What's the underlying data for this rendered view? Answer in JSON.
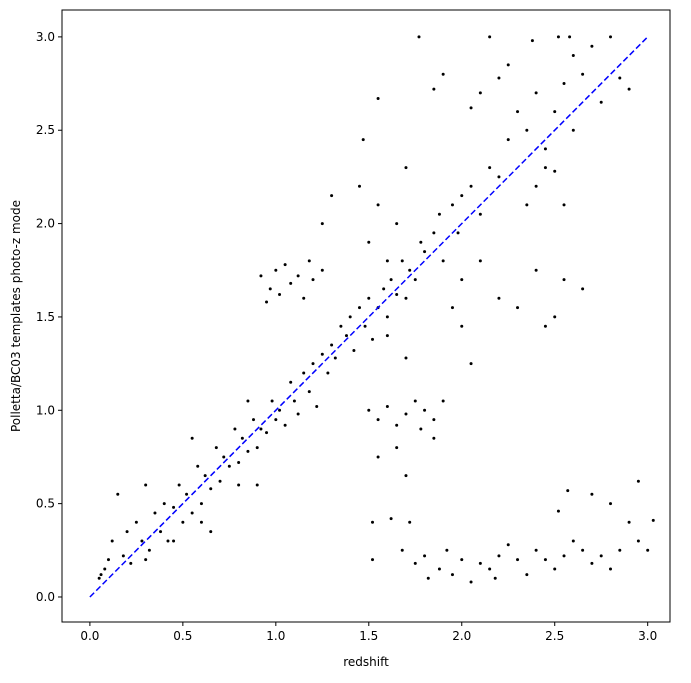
{
  "chart_data": {
    "type": "scatter",
    "xlabel": "redshift",
    "ylabel": "Polletta/BC03 templates photo-z mode",
    "xlim": [
      -0.15,
      3.12
    ],
    "ylim": [
      -0.134,
      3.144
    ],
    "xticks": [
      {
        "value": 0,
        "label": "0.0"
      },
      {
        "value": 0.5,
        "label": "0.5"
      },
      {
        "value": 1,
        "label": "1.0"
      },
      {
        "value": 1.5,
        "label": "1.5"
      },
      {
        "value": 2,
        "label": "2.0"
      },
      {
        "value": 2.5,
        "label": "2.5"
      },
      {
        "value": 3,
        "label": "3.0"
      }
    ],
    "yticks": [
      {
        "value": 0,
        "label": "0.0"
      },
      {
        "value": 0.5,
        "label": "0.5"
      },
      {
        "value": 1,
        "label": "1.0"
      },
      {
        "value": 1.5,
        "label": "1.5"
      },
      {
        "value": 2,
        "label": "2.0"
      },
      {
        "value": 2.5,
        "label": "2.5"
      },
      {
        "value": 3,
        "label": "3.0"
      }
    ],
    "series": [
      {
        "color": "#000000",
        "x": [
          0.05,
          0.08,
          0.1,
          0.12,
          0.15,
          0.18,
          0.2,
          0.22,
          0.25,
          0.28,
          0.3,
          0.32,
          0.35,
          0.38,
          0.4,
          0.42,
          0.45,
          0.48,
          0.5,
          0.52,
          0.55,
          0.58,
          0.6,
          0.62,
          0.65,
          0.68,
          0.7,
          0.72,
          0.75,
          0.78,
          0.8,
          0.82,
          0.85,
          0.88,
          0.9,
          0.92,
          0.95,
          0.98,
          1.0,
          1.02,
          1.05,
          1.08,
          1.1,
          1.12,
          1.15,
          1.18,
          1.2,
          1.22,
          1.25,
          1.28,
          1.3,
          1.32,
          1.35,
          1.38,
          1.4,
          1.42,
          1.45,
          1.48,
          1.5,
          1.52,
          1.55,
          1.58,
          1.6,
          1.62,
          1.65,
          1.68,
          1.7,
          1.72,
          1.75,
          1.78,
          1.8,
          1.85,
          1.88,
          1.9,
          1.95,
          1.98,
          2.0,
          2.05,
          2.1,
          2.15,
          2.2,
          0.06,
          0.3,
          0.45,
          0.6,
          0.65,
          0.8,
          0.9,
          0.85,
          0.55,
          2.25,
          2.3,
          2.35,
          2.4,
          2.45,
          2.5,
          2.55,
          2.6,
          2.65,
          2.7,
          2.75,
          2.8,
          2.85,
          2.9,
          2.58,
          2.52,
          2.38,
          2.15,
          1.77,
          1.9,
          1.85,
          2.1,
          2.05,
          2.2,
          2.25,
          2.4,
          2.55,
          2.6,
          2.45,
          2.35,
          2.5,
          1.7,
          1.65,
          1.55,
          1.45,
          1.3,
          1.25,
          1.5,
          1.6,
          2.0,
          2.1,
          2.2,
          1.95,
          2.0,
          2.05,
          2.3,
          2.4,
          2.45,
          2.55,
          2.65,
          2.5,
          1.55,
          1.47,
          1.7,
          1.6,
          0.92,
          0.97,
          1.0,
          1.02,
          1.05,
          1.08,
          1.12,
          1.15,
          1.2,
          0.95,
          1.25,
          1.18,
          1.5,
          1.55,
          1.6,
          1.65,
          1.7,
          1.75,
          1.78,
          1.8,
          1.85,
          1.9,
          1.85,
          1.65,
          1.55,
          1.52,
          1.62,
          1.72,
          1.7,
          1.52,
          1.68,
          1.75,
          1.8,
          1.82,
          1.88,
          1.92,
          1.95,
          2.0,
          2.05,
          2.1,
          2.15,
          2.18,
          2.2,
          2.25,
          2.3,
          2.35,
          2.4,
          2.45,
          2.5,
          2.55,
          2.6,
          2.65,
          2.7,
          2.75,
          2.8,
          2.85,
          2.9,
          2.95,
          3.0,
          3.03,
          2.52,
          2.7,
          2.8,
          2.95,
          2.57
        ],
        "values": [
          0.1,
          0.15,
          0.2,
          0.3,
          0.55,
          0.22,
          0.35,
          0.18,
          0.4,
          0.3,
          0.6,
          0.25,
          0.45,
          0.35,
          0.5,
          0.3,
          0.48,
          0.6,
          0.4,
          0.55,
          0.45,
          0.7,
          0.5,
          0.65,
          0.58,
          0.8,
          0.62,
          0.75,
          0.7,
          0.9,
          0.72,
          0.85,
          0.78,
          0.95,
          0.8,
          0.9,
          0.88,
          1.05,
          0.95,
          1.0,
          0.92,
          1.15,
          1.05,
          0.98,
          1.2,
          1.1,
          1.25,
          1.02,
          1.3,
          1.2,
          1.35,
          1.28,
          1.45,
          1.4,
          1.5,
          1.32,
          1.55,
          1.45,
          1.6,
          1.38,
          1.55,
          1.65,
          1.5,
          1.7,
          1.62,
          1.8,
          1.6,
          1.75,
          1.7,
          1.9,
          1.85,
          1.95,
          2.05,
          1.8,
          2.1,
          1.95,
          2.15,
          2.2,
          2.05,
          2.3,
          2.25,
          0.12,
          0.2,
          0.3,
          0.4,
          0.35,
          0.6,
          0.6,
          1.05,
          0.85,
          2.45,
          2.6,
          2.5,
          2.7,
          2.4,
          2.6,
          2.75,
          2.9,
          2.8,
          2.95,
          2.65,
          3.0,
          2.78,
          2.72,
          3.0,
          3.0,
          2.98,
          3.0,
          3.0,
          2.8,
          2.72,
          2.7,
          2.62,
          2.78,
          2.85,
          2.2,
          2.1,
          2.5,
          2.3,
          2.1,
          2.28,
          2.3,
          2.0,
          2.1,
          2.2,
          2.15,
          2.0,
          1.9,
          1.8,
          1.7,
          1.8,
          1.6,
          1.55,
          1.45,
          1.25,
          1.55,
          1.75,
          1.45,
          1.7,
          1.65,
          1.5,
          2.67,
          2.45,
          1.28,
          1.4,
          1.72,
          1.65,
          1.75,
          1.62,
          1.78,
          1.68,
          1.72,
          1.6,
          1.7,
          1.58,
          1.75,
          1.8,
          1.0,
          0.95,
          1.02,
          0.92,
          0.98,
          1.05,
          0.9,
          1.0,
          0.95,
          1.05,
          0.85,
          0.8,
          0.75,
          0.4,
          0.42,
          0.4,
          0.65,
          0.2,
          0.25,
          0.18,
          0.22,
          0.1,
          0.15,
          0.25,
          0.12,
          0.2,
          0.08,
          0.18,
          0.15,
          0.1,
          0.22,
          0.28,
          0.2,
          0.12,
          0.25,
          0.2,
          0.15,
          0.22,
          0.3,
          0.25,
          0.18,
          0.22,
          0.15,
          0.25,
          0.4,
          0.3,
          0.25,
          0.41,
          0.46,
          0.55,
          0.5,
          0.62,
          0.57
        ]
      }
    ],
    "reference_line": {
      "x": [
        0,
        3
      ],
      "values": [
        0,
        3
      ],
      "color": "#0000ff",
      "dashed": true
    }
  }
}
